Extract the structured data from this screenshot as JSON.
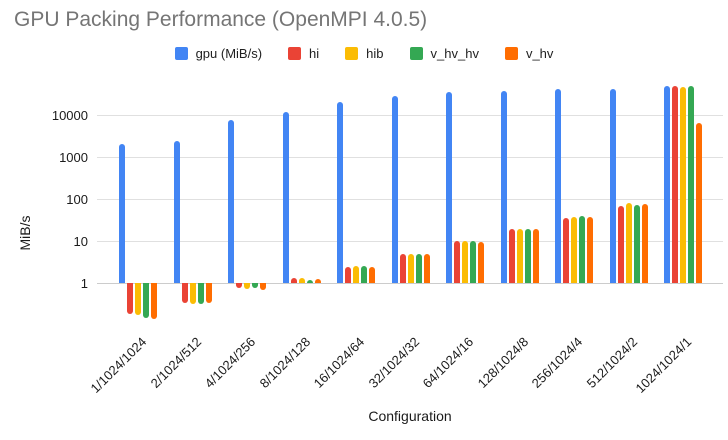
{
  "chart_data": {
    "type": "bar",
    "title": "GPU Packing Performance (OpenMPI 4.0.5)",
    "xlabel": "Configuration",
    "ylabel": "MiB/s",
    "y_scale": "log",
    "y_ticks": [
      1,
      10,
      100,
      1000,
      10000
    ],
    "ylim": [
      0.1,
      50000
    ],
    "grid": "horizontal",
    "legend_position": "top",
    "categories": [
      "1/1024/1024",
      "2/1024/512",
      "4/1024/256",
      "8/1024/128",
      "16/1024/64",
      "32/1024/32",
      "64/1024/16",
      "128/1024/8",
      "256/1024/4",
      "512/1024/2",
      "1024/1024/1"
    ],
    "series": [
      {
        "name": "gpu (MiB/s)",
        "color": "#4285F4",
        "values": [
          2000,
          2400,
          7500,
          11500,
          20500,
          29000,
          35000,
          38000,
          42000,
          41000,
          48000
        ]
      },
      {
        "name": "hi",
        "color": "#EA4335",
        "values": [
          0.18,
          0.33,
          0.75,
          1.35,
          2.4,
          4.8,
          10,
          19,
          35,
          68,
          50000
        ]
      },
      {
        "name": "hib",
        "color": "#FBBC04",
        "values": [
          0.17,
          0.32,
          0.72,
          1.3,
          2.5,
          4.9,
          10,
          19.5,
          38,
          79,
          47000
        ]
      },
      {
        "name": "v_hv_hv",
        "color": "#34A853",
        "values": [
          0.15,
          0.32,
          0.75,
          1.2,
          2.55,
          4.8,
          10,
          19.5,
          40,
          72,
          50000
        ]
      },
      {
        "name": "v_hv",
        "color": "#FF6D01",
        "values": [
          0.14,
          0.33,
          0.7,
          1.25,
          2.45,
          5.0,
          9.3,
          19.5,
          38,
          76,
          6500
        ]
      }
    ]
  }
}
